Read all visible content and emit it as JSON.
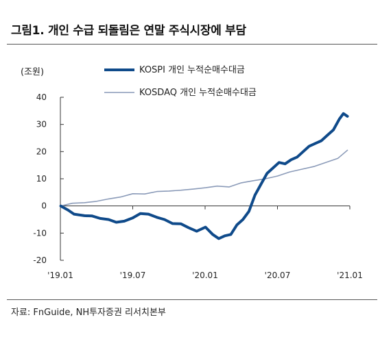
{
  "header": {
    "title": "그림1. 개인 수급 되돌림은 연말 주식시장에 부담"
  },
  "footer": {
    "source": "자료: FnGuide, NH투자증권 리서치본부"
  },
  "colors": {
    "kospi": "#0f4a8a",
    "kosdaq": "#8a9ab8",
    "axis": "#333333"
  },
  "chart_data": {
    "type": "line",
    "unit_label": "(조원)",
    "y_ticks": [
      "40",
      "30",
      "20",
      "10",
      "0",
      "-10",
      "-20"
    ],
    "x_ticks": [
      "'19.01",
      "'19.07",
      "'20.01",
      "'20.07",
      "'21.01"
    ],
    "ylim": [
      -20,
      40
    ],
    "xlim": [
      "2019-01",
      "2021-01"
    ],
    "legend_position": "top-center",
    "grid": false,
    "series": [
      {
        "name": "KOSPI 개인 누적순매수대금",
        "color": "#0f4a8a",
        "x": [
          "2019-01-02",
          "2019-01-20",
          "2019-02-05",
          "2019-03-01",
          "2019-03-20",
          "2019-04-10",
          "2019-05-01",
          "2019-05-20",
          "2019-06-10",
          "2019-07-01",
          "2019-07-20",
          "2019-08-10",
          "2019-09-01",
          "2019-09-20",
          "2019-10-10",
          "2019-11-01",
          "2019-11-20",
          "2019-12-10",
          "2020-01-02",
          "2020-01-20",
          "2020-02-05",
          "2020-02-20",
          "2020-03-05",
          "2020-03-20",
          "2020-04-05",
          "2020-04-20",
          "2020-05-05",
          "2020-05-20",
          "2020-06-05",
          "2020-06-20",
          "2020-07-05",
          "2020-07-20",
          "2020-08-05",
          "2020-08-20",
          "2020-09-05",
          "2020-09-20",
          "2020-10-05",
          "2020-10-20",
          "2020-11-05",
          "2020-11-20",
          "2020-12-05",
          "2020-12-15",
          "2020-12-25"
        ],
        "y": [
          0.0,
          -1.5,
          -3.0,
          -3.6,
          -3.7,
          -4.6,
          -5.0,
          -6.0,
          -5.6,
          -4.4,
          -2.8,
          -3.0,
          -4.2,
          -5.0,
          -6.5,
          -6.6,
          -8.0,
          -9.3,
          -7.8,
          -10.5,
          -12.0,
          -11.0,
          -10.5,
          -7.0,
          -5.0,
          -2.0,
          4.0,
          8.0,
          12.0,
          14.0,
          16.0,
          15.5,
          17.0,
          18.0,
          20.0,
          22.0,
          23.0,
          24.0,
          26.0,
          28.0,
          32.0,
          34.0,
          33.0
        ]
      },
      {
        "name": "KOSDAQ 개인 누적순매수대금",
        "color": "#8a9ab8",
        "x": [
          "2019-01-02",
          "2019-02-01",
          "2019-03-01",
          "2019-04-01",
          "2019-05-01",
          "2019-06-01",
          "2019-07-01",
          "2019-08-01",
          "2019-09-01",
          "2019-10-01",
          "2019-11-01",
          "2019-12-01",
          "2020-01-02",
          "2020-02-01",
          "2020-03-01",
          "2020-04-01",
          "2020-05-01",
          "2020-06-01",
          "2020-07-01",
          "2020-08-01",
          "2020-09-01",
          "2020-10-01",
          "2020-11-01",
          "2020-12-01",
          "2020-12-25"
        ],
        "y": [
          0.0,
          1.0,
          1.2,
          1.7,
          2.6,
          3.3,
          4.5,
          4.4,
          5.3,
          5.5,
          5.8,
          6.2,
          6.7,
          7.3,
          7.0,
          8.5,
          9.3,
          10.0,
          11.0,
          12.5,
          13.5,
          14.5,
          16.0,
          17.5,
          20.5
        ]
      }
    ]
  }
}
